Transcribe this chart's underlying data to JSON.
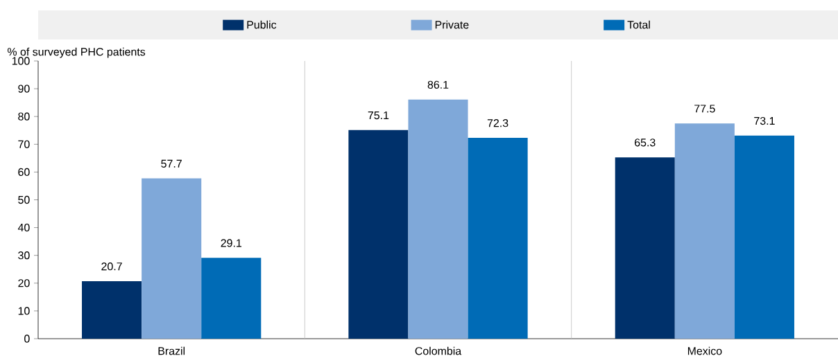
{
  "chart_data": {
    "type": "bar",
    "ylabel": "% of surveyed PHC patients",
    "categories": [
      "Brazil",
      "Colombia",
      "Mexico"
    ],
    "series": [
      {
        "name": "Public",
        "color": "#00316b",
        "values": [
          20.7,
          75.1,
          65.3
        ]
      },
      {
        "name": "Private",
        "color": "#7fa8d9",
        "values": [
          57.7,
          86.1,
          77.5
        ]
      },
      {
        "name": "Total",
        "color": "#006bb6",
        "values": [
          29.1,
          72.3,
          73.1
        ]
      }
    ],
    "ylim": [
      0,
      100
    ],
    "yticks": [
      0,
      10,
      20,
      30,
      40,
      50,
      60,
      70,
      80,
      90,
      100
    ],
    "data_labels": true,
    "legend": "top",
    "grid": false
  }
}
